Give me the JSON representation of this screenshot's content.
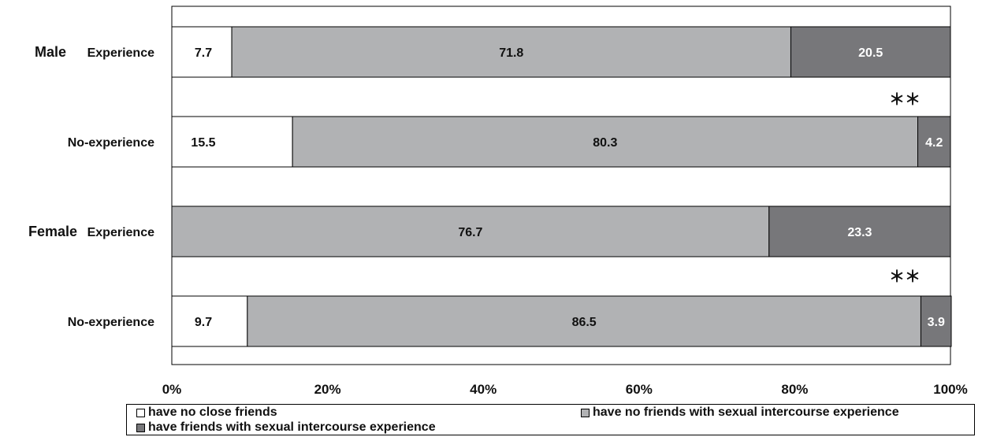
{
  "chart_data": {
    "type": "bar",
    "orientation": "horizontal",
    "stacked": true,
    "percent": true,
    "groups": [
      {
        "label": "Male",
        "rows": [
          0,
          1
        ]
      },
      {
        "label": "Female",
        "rows": [
          2,
          3
        ]
      }
    ],
    "categories": [
      "Experience",
      "No-experience",
      "Experience",
      "No-experience"
    ],
    "series": [
      {
        "name": "have no close friends",
        "color": "#ffffff",
        "values": [
          7.7,
          15.5,
          0,
          9.7
        ]
      },
      {
        "name": "have no friends with sexual intercourse experience",
        "color": "#b1b2b4",
        "values": [
          71.8,
          80.3,
          76.7,
          86.5
        ]
      },
      {
        "name": "have friends with sexual intercourse experience",
        "color": "#77777a",
        "values": [
          20.5,
          4.2,
          23.3,
          3.9
        ]
      }
    ],
    "x_ticks": [
      "0%",
      "20%",
      "40%",
      "60%",
      "80%",
      "100%"
    ],
    "xlim": [
      0,
      100
    ],
    "significance": [
      {
        "between_rows": [
          0,
          1
        ],
        "label": "＊＊"
      },
      {
        "between_rows": [
          2,
          3
        ],
        "label": "＊＊"
      }
    ],
    "legend_position": "bottom",
    "grid": false
  }
}
